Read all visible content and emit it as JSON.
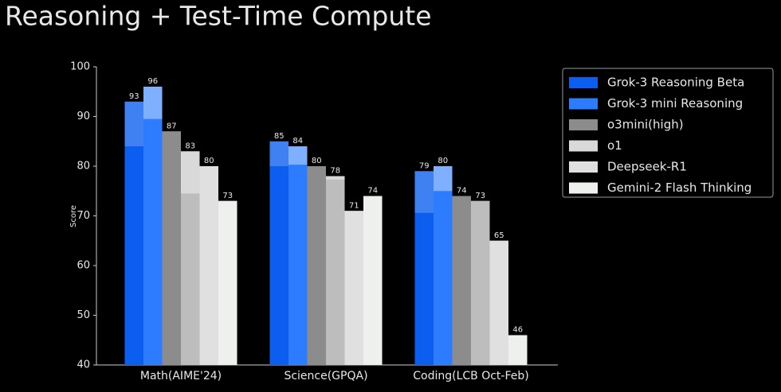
{
  "chart_data": {
    "type": "bar",
    "title": "Reasoning + Test-Time Compute",
    "y_label": "Score",
    "categories": [
      "Math(AIME'24)",
      "Science(GPQA)",
      "Coding(LCB Oct-Feb)"
    ],
    "ylim": [
      40,
      100
    ],
    "yticks": [
      40,
      50,
      60,
      70,
      80,
      90,
      100
    ],
    "series": [
      {
        "name": "Grok-3 Reasoning Beta",
        "color": "#0b5ef0",
        "top_color": "#3f80f2",
        "values": [
          93,
          85,
          79
        ],
        "base_values": [
          84,
          80,
          70.6
        ]
      },
      {
        "name": "Grok-3 mini Reasoning",
        "color": "#2d7cff",
        "top_color": "#7fb0ff",
        "values": [
          96,
          84,
          80
        ],
        "base_values": [
          89.5,
          80.3,
          75
        ]
      },
      {
        "name": "o3mini(high)",
        "color": "#8c8c8c",
        "top_color": "#8c8c8c",
        "values": [
          87,
          80,
          74
        ],
        "base_values": [
          null,
          null,
          null
        ]
      },
      {
        "name": "o1",
        "color": "#bdbdbd",
        "top_color": "#d9d9d9",
        "values": [
          83,
          78,
          73
        ],
        "base_values": [
          74.5,
          77.3,
          null
        ]
      },
      {
        "name": "Deepseek-R1",
        "color": "#e0e0e0",
        "top_color": "#e0e0e0",
        "values": [
          80,
          71,
          65
        ],
        "base_values": [
          null,
          null,
          null
        ]
      },
      {
        "name": "Gemini-2 Flash Thinking",
        "color": "#eef0ee",
        "top_color": "#eef0ee",
        "values": [
          73,
          74,
          46
        ],
        "base_values": [
          null,
          null,
          null
        ]
      }
    ]
  }
}
